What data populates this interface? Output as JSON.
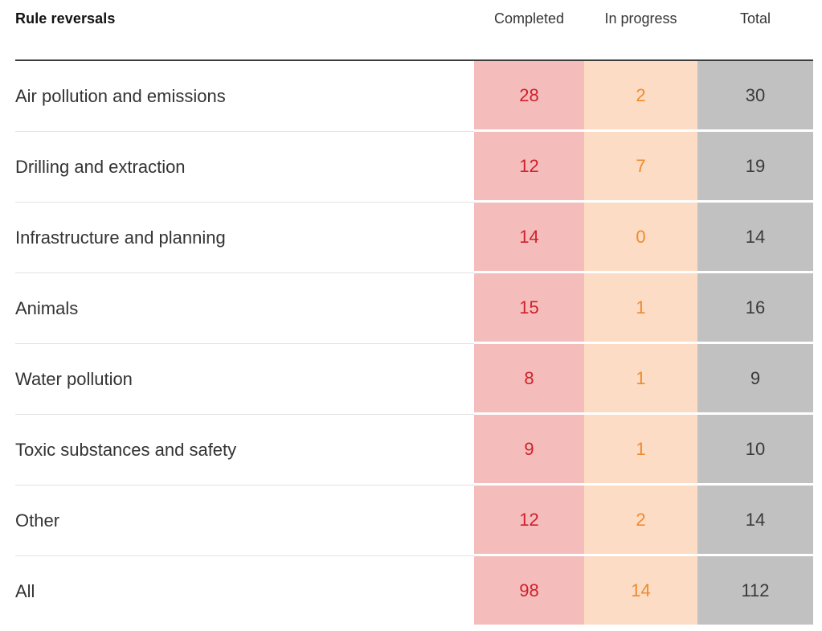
{
  "title": "Rule reversals",
  "columns": {
    "completed": "Completed",
    "in_progress": "In progress",
    "total": "Total"
  },
  "colors": {
    "completed_bg": "#f4bdbc",
    "completed_text": "#d0202a",
    "in_progress_bg": "#fcdcc4",
    "in_progress_text": "#ef8b2e",
    "total_bg": "#c1c1c1",
    "total_text": "#3a3a3a",
    "header_rule": "#3b3b3b",
    "row_separator": "#e2e2e2",
    "label_text": "#333333"
  },
  "chart_data": {
    "type": "table",
    "title": "Rule reversals",
    "columns": [
      "Completed",
      "In progress",
      "Total"
    ],
    "rows": [
      {
        "label": "Air pollution and emissions",
        "completed": 28,
        "in_progress": 2,
        "total": 30
      },
      {
        "label": "Drilling and extraction",
        "completed": 12,
        "in_progress": 7,
        "total": 19
      },
      {
        "label": "Infrastructure and planning",
        "completed": 14,
        "in_progress": 0,
        "total": 14
      },
      {
        "label": "Animals",
        "completed": 15,
        "in_progress": 1,
        "total": 16
      },
      {
        "label": "Water pollution",
        "completed": 8,
        "in_progress": 1,
        "total": 9
      },
      {
        "label": "Toxic substances and safety",
        "completed": 9,
        "in_progress": 1,
        "total": 10
      },
      {
        "label": "Other",
        "completed": 12,
        "in_progress": 2,
        "total": 14
      },
      {
        "label": "All",
        "completed": 98,
        "in_progress": 14,
        "total": 112
      }
    ]
  }
}
